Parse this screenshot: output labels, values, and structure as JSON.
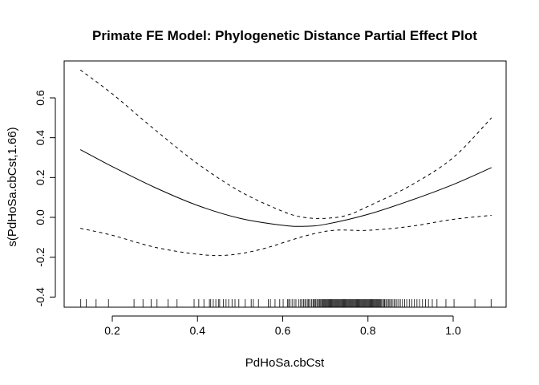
{
  "chart_data": {
    "type": "line",
    "title": "Primate FE Model: Phylogenetic Distance Partial Effect Plot",
    "xlabel": "PdHoSa.cbCst",
    "ylabel": "s(PdHoSa.cbCst,1.66)",
    "xlim": [
      0.1,
      1.1
    ],
    "ylim": [
      -0.44,
      0.76
    ],
    "xticks": [
      0.2,
      0.4,
      0.6,
      0.8,
      1.0
    ],
    "xtick_labels": [
      "0.2",
      "0.4",
      "0.6",
      "0.8",
      "1.0"
    ],
    "yticks": [
      -0.4,
      -0.2,
      0.0,
      0.2,
      0.4,
      0.6
    ],
    "ytick_labels": [
      "-0.4",
      "-0.2",
      "0.0",
      "0.2",
      "0.4",
      "0.6"
    ],
    "grid": false,
    "series": [
      {
        "line_style": "solid",
        "x": [
          0.125,
          0.2,
          0.3,
          0.4,
          0.5,
          0.6,
          0.65,
          0.7,
          0.8,
          0.9,
          1.0,
          1.09
        ],
        "y": [
          0.34,
          0.255,
          0.15,
          0.06,
          -0.005,
          -0.04,
          -0.045,
          -0.035,
          0.015,
          0.085,
          0.165,
          0.25
        ]
      },
      {
        "line_style": "dashed",
        "x": [
          0.125,
          0.2,
          0.3,
          0.4,
          0.5,
          0.6,
          0.65,
          0.7,
          0.75,
          0.8,
          0.9,
          1.0,
          1.09
        ],
        "y": [
          0.74,
          0.62,
          0.44,
          0.27,
          0.13,
          0.03,
          0.0,
          -0.005,
          0.01,
          0.055,
          0.16,
          0.3,
          0.5
        ]
      },
      {
        "line_style": "dashed",
        "x": [
          0.125,
          0.2,
          0.3,
          0.4,
          0.47,
          0.55,
          0.65,
          0.72,
          0.8,
          0.9,
          1.0,
          1.09
        ],
        "y": [
          -0.055,
          -0.09,
          -0.15,
          -0.185,
          -0.19,
          -0.16,
          -0.095,
          -0.065,
          -0.065,
          -0.045,
          -0.01,
          0.01
        ]
      }
    ],
    "rug_x": [
      0.126,
      0.139,
      0.162,
      0.191,
      0.251,
      0.272,
      0.291,
      0.305,
      0.331,
      0.352,
      0.392,
      0.403,
      0.415,
      0.428,
      0.431,
      0.437,
      0.443,
      0.449,
      0.452,
      0.461,
      0.467,
      0.473,
      0.481,
      0.488,
      0.497,
      0.512,
      0.526,
      0.531,
      0.543,
      0.566,
      0.571,
      0.582,
      0.593,
      0.601,
      0.611,
      0.614,
      0.617,
      0.622,
      0.627,
      0.631,
      0.638,
      0.642,
      0.645,
      0.649,
      0.652,
      0.655,
      0.659,
      0.661,
      0.664,
      0.668,
      0.671,
      0.673,
      0.676,
      0.678,
      0.681,
      0.684,
      0.686,
      0.688,
      0.691,
      0.693,
      0.695,
      0.697,
      0.699,
      0.701,
      0.703,
      0.705,
      0.707,
      0.709,
      0.711,
      0.713,
      0.715,
      0.717,
      0.719,
      0.721,
      0.723,
      0.725,
      0.727,
      0.729,
      0.731,
      0.733,
      0.735,
      0.737,
      0.739,
      0.741,
      0.743,
      0.745,
      0.747,
      0.749,
      0.751,
      0.753,
      0.755,
      0.757,
      0.759,
      0.761,
      0.763,
      0.765,
      0.767,
      0.769,
      0.771,
      0.773,
      0.775,
      0.777,
      0.779,
      0.781,
      0.783,
      0.785,
      0.787,
      0.789,
      0.791,
      0.793,
      0.795,
      0.797,
      0.799,
      0.801,
      0.803,
      0.805,
      0.807,
      0.809,
      0.811,
      0.813,
      0.815,
      0.817,
      0.819,
      0.821,
      0.823,
      0.825,
      0.827,
      0.829,
      0.831,
      0.834,
      0.837,
      0.839,
      0.842,
      0.845,
      0.848,
      0.851,
      0.854,
      0.857,
      0.861,
      0.864,
      0.868,
      0.872,
      0.876,
      0.881,
      0.886,
      0.891,
      0.897,
      0.903,
      0.909,
      0.915,
      0.921,
      0.928,
      0.935,
      0.942,
      0.951,
      0.962,
      0.983,
      1.002,
      1.051,
      1.089
    ]
  }
}
